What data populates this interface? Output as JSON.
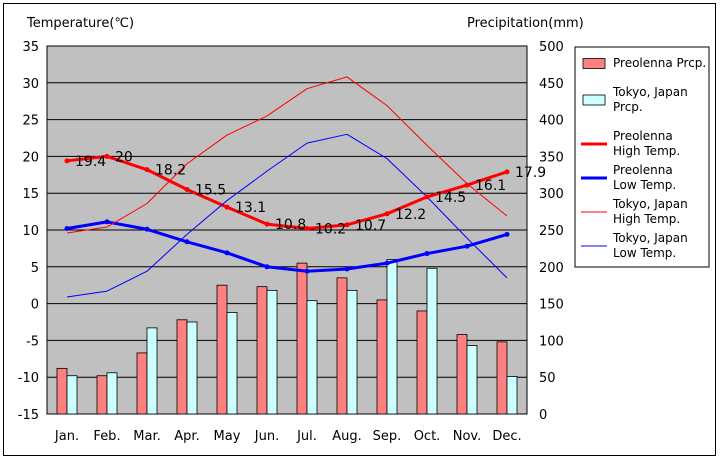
{
  "chart_data": {
    "type": "bar+line",
    "categories": [
      "Jan.",
      "Feb.",
      "Mar.",
      "Apr.",
      "May",
      "Jun.",
      "Jul.",
      "Aug.",
      "Sep.",
      "Oct.",
      "Nov.",
      "Dec."
    ],
    "y_left": {
      "label": "Temperature(℃)",
      "min": -15,
      "max": 35,
      "step": 5
    },
    "y_right": {
      "label": "Precipitation(mm)",
      "min": 0,
      "max": 500,
      "step": 50
    },
    "grid": true,
    "legend_position": "right",
    "bar_series": [
      {
        "name": "Preolenna Prcp.",
        "legend_lines": [
          "Preolenna Prcp."
        ],
        "color": "#ff8080",
        "values": [
          62,
          52,
          83,
          128,
          175,
          173,
          205,
          185,
          155,
          140,
          108,
          98
        ]
      },
      {
        "name": "Tokyo, Japan Prcp.",
        "legend_lines": [
          "Tokyo, Japan",
          "Prcp."
        ],
        "color": "#ccffff",
        "values": [
          52,
          56,
          117,
          125,
          138,
          168,
          154,
          168,
          210,
          198,
          93,
          51
        ]
      }
    ],
    "line_series": [
      {
        "name": "Preolenna High Temp.",
        "legend_lines": [
          "Preolenna",
          "High Temp."
        ],
        "color": "#ff0000",
        "width": 3,
        "values": [
          19.4,
          20,
          18.2,
          15.5,
          13.1,
          10.8,
          10.2,
          10.7,
          12.2,
          14.5,
          16.1,
          17.9
        ],
        "labels": [
          "19.4",
          "20",
          "18.2",
          "15.5",
          "13.1",
          "10.8",
          "10.2",
          "10.7",
          "12.2",
          "14.5",
          "16.1",
          "17.9"
        ]
      },
      {
        "name": "Preolenna Low Temp.",
        "legend_lines": [
          "Preolenna",
          "Low Temp."
        ],
        "color": "#0000ff",
        "width": 3,
        "values": [
          10.2,
          11.1,
          10.1,
          8.4,
          6.9,
          5.0,
          4.4,
          4.7,
          5.5,
          6.8,
          7.8,
          9.4
        ]
      },
      {
        "name": "Tokyo, Japan High Temp.",
        "legend_lines": [
          "Tokyo, Japan",
          "High Temp."
        ],
        "color": "#ff0000",
        "width": 1,
        "values": [
          9.6,
          10.4,
          13.6,
          19.0,
          22.9,
          25.5,
          29.2,
          30.8,
          26.9,
          21.5,
          16.3,
          11.9
        ]
      },
      {
        "name": "Tokyo, Japan Low Temp.",
        "legend_lines": [
          "Tokyo, Japan",
          "Low Temp."
        ],
        "color": "#0000ff",
        "width": 1,
        "values": [
          0.9,
          1.7,
          4.4,
          9.4,
          14.0,
          18.0,
          21.8,
          23.0,
          19.7,
          14.5,
          8.9,
          3.5
        ]
      }
    ]
  }
}
